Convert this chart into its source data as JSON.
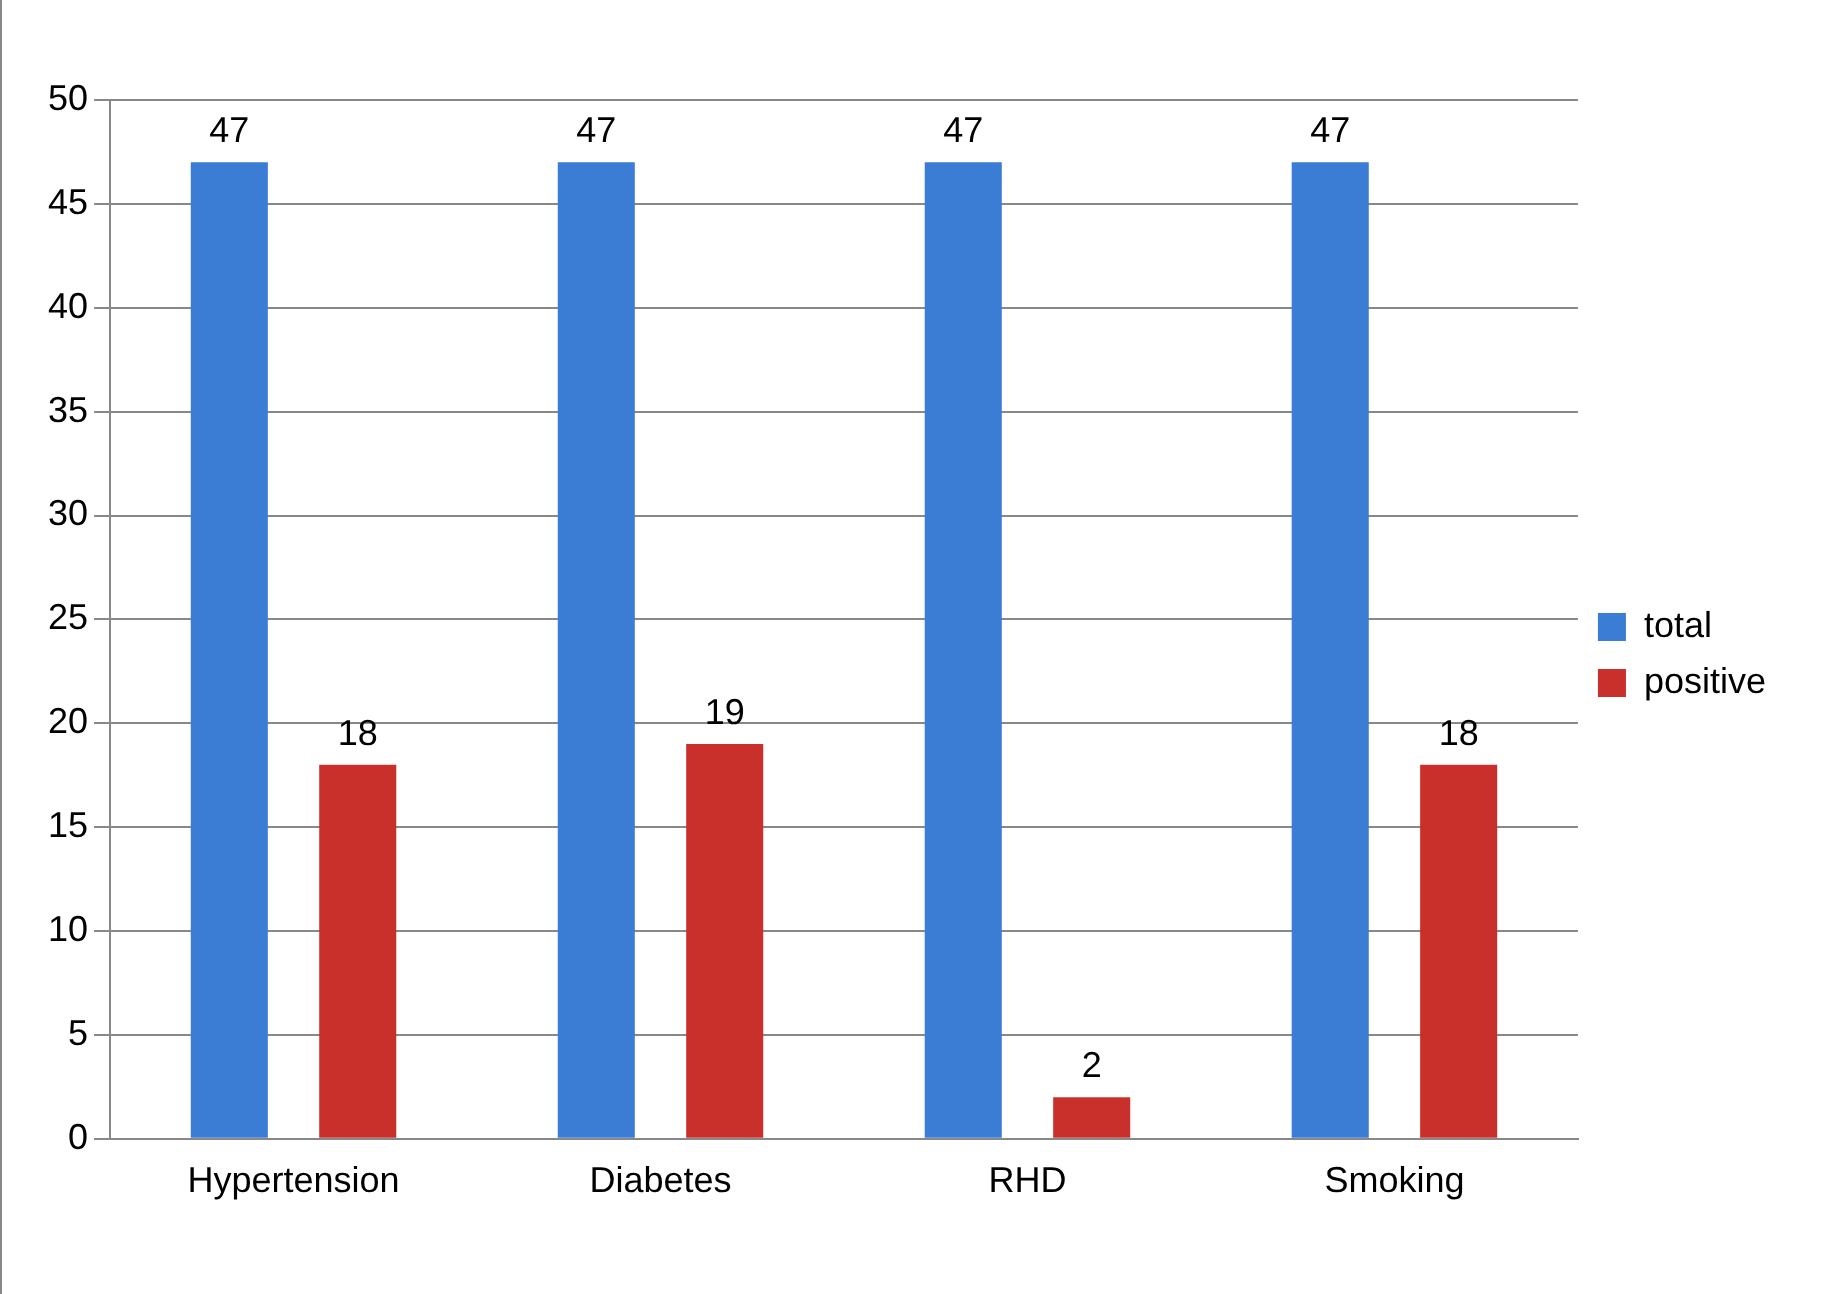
{
  "chart_data": {
    "type": "bar",
    "categories": [
      "Hypertension",
      "Diabetes",
      "RHD",
      "Smoking"
    ],
    "series": [
      {
        "name": "total",
        "color": "#3b7dd4",
        "values": [
          47,
          47,
          47,
          47
        ]
      },
      {
        "name": "positive",
        "color": "#c9302c",
        "values": [
          18,
          19,
          2,
          18
        ]
      }
    ],
    "ylim": [
      0,
      50
    ],
    "yticks": [
      0,
      5,
      10,
      15,
      20,
      25,
      30,
      35,
      40,
      45,
      50
    ],
    "grid": "y",
    "legend": "right",
    "data_labels": true
  }
}
